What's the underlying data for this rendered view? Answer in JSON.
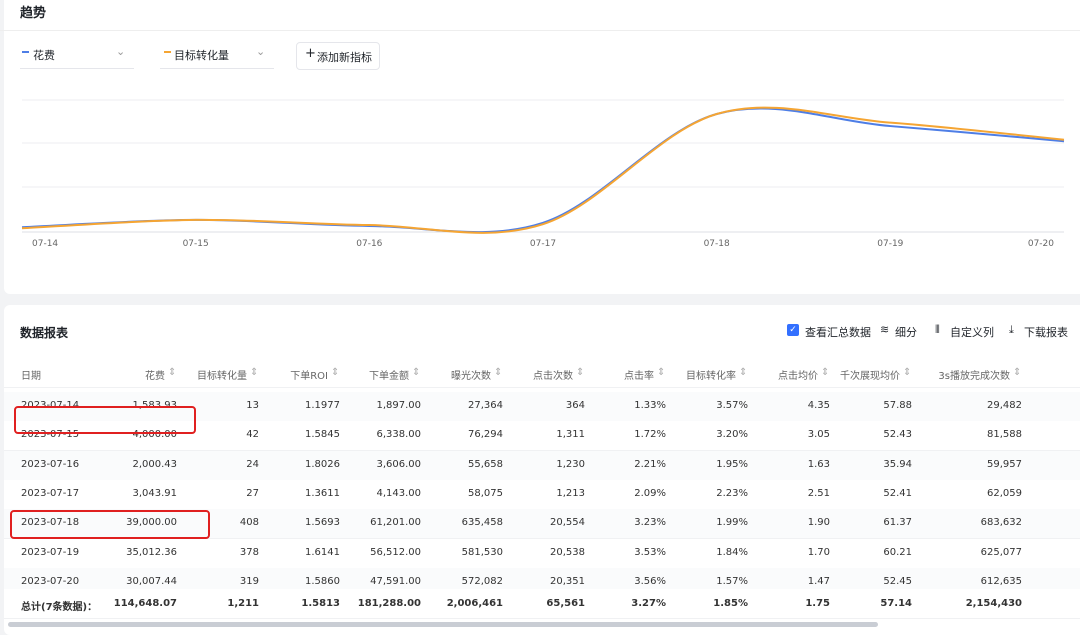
{
  "header": {
    "title": "趋势"
  },
  "chart_data": {
    "type": "line",
    "x": [
      "07-14",
      "07-15",
      "07-16",
      "07-17",
      "07-18",
      "07-19",
      "07-20"
    ],
    "series": [
      {
        "name": "花费",
        "color": "#4e7ee6",
        "values": [
          1583.93,
          4000,
          2000.43,
          3043.91,
          39000,
          35012.36,
          30007.44
        ]
      },
      {
        "name": "目标转化量",
        "color": "#f5a533",
        "values": [
          13,
          42,
          24,
          27,
          408,
          378,
          319
        ]
      }
    ],
    "grid": true
  },
  "add_metric": "添加新指标",
  "report": {
    "title": "数据报表",
    "actions": [
      "查看汇总数据",
      "细分",
      "自定义列",
      "下载报表"
    ]
  },
  "table": {
    "columns": [
      "日期",
      "花费",
      "目标转化量",
      "下单ROI",
      "下单金额",
      "曝光次数",
      "点击次数",
      "点击率",
      "目标转化率",
      "点击均价",
      "千次展现均价",
      "3s播放完成次数"
    ],
    "rows": [
      [
        "2023-07-14",
        "1,583.93",
        "13",
        "1.1977",
        "1,897.00",
        "27,364",
        "364",
        "1.33%",
        "3.57%",
        "4.35",
        "57.88",
        "29,482"
      ],
      [
        "2023-07-15",
        "4,000.00",
        "42",
        "1.5845",
        "6,338.00",
        "76,294",
        "1,311",
        "1.72%",
        "3.20%",
        "3.05",
        "52.43",
        "81,588"
      ],
      [
        "2023-07-16",
        "2,000.43",
        "24",
        "1.8026",
        "3,606.00",
        "55,658",
        "1,230",
        "2.21%",
        "1.95%",
        "1.63",
        "35.94",
        "59,957"
      ],
      [
        "2023-07-17",
        "3,043.91",
        "27",
        "1.3611",
        "4,143.00",
        "58,075",
        "1,213",
        "2.09%",
        "2.23%",
        "2.51",
        "52.41",
        "62,059"
      ],
      [
        "2023-07-18",
        "39,000.00",
        "408",
        "1.5693",
        "61,201.00",
        "635,458",
        "20,554",
        "3.23%",
        "1.99%",
        "1.90",
        "61.37",
        "683,632"
      ],
      [
        "2023-07-19",
        "35,012.36",
        "378",
        "1.6141",
        "56,512.00",
        "581,530",
        "20,538",
        "3.53%",
        "1.84%",
        "1.70",
        "60.21",
        "625,077"
      ],
      [
        "2023-07-20",
        "30,007.44",
        "319",
        "1.5860",
        "47,591.00",
        "572,082",
        "20,351",
        "3.56%",
        "1.57%",
        "1.47",
        "52.45",
        "612,635"
      ]
    ],
    "total": [
      "总计(7条数据)：",
      "114,648.07",
      "1,211",
      "1.5813",
      "181,288.00",
      "2,006,461",
      "65,561",
      "3.27%",
      "1.85%",
      "1.75",
      "57.14",
      "2,154,430"
    ]
  }
}
